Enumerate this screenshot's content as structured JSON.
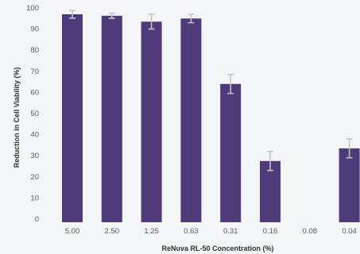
{
  "chart_data": {
    "type": "bar",
    "title": "",
    "xlabel": "ReNuva RL-50 Concentration (%)",
    "ylabel": "Reduction in Cell Viability (%)",
    "ylim": [
      0,
      100
    ],
    "yticks": [
      0,
      10,
      20,
      30,
      40,
      50,
      60,
      70,
      80,
      90,
      100
    ],
    "categories": [
      "5.00",
      "2.50",
      "1.25",
      "0.63",
      "0.31",
      "0.16",
      "0.08",
      "0.04"
    ],
    "values": [
      98.5,
      97.8,
      95.0,
      96.5,
      65.5,
      29.0,
      null,
      35.0
    ],
    "errors": [
      1.8,
      1.2,
      3.5,
      2.0,
      4.5,
      4.5,
      null,
      4.5
    ],
    "grid": false,
    "colors": {
      "bar": "#4d3a78",
      "error_bar": "#c3c3c7"
    }
  }
}
